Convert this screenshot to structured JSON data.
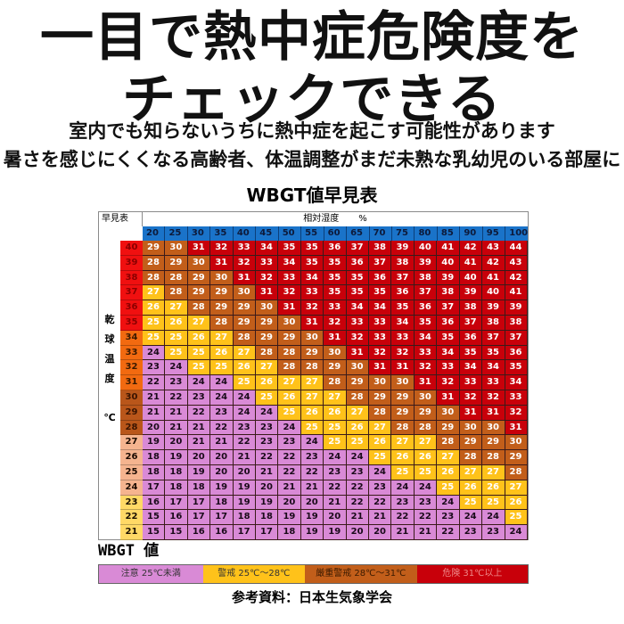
{
  "header": {
    "title_line1": "一目で熱中症危険度を",
    "title_line2": "チェックできる",
    "subtitle_line1": "室内でも知らないうちに熱中症を起こす可能性があります",
    "subtitle_line2": "暑さを感じにくくなる高齢者、体温調整がまだ未熟な乳幼児のいる部屋に"
  },
  "table": {
    "corner_label": "早見表",
    "humidity_label": "相対湿度",
    "humidity_unit": "%",
    "temp_axis_label": [
      "乾",
      "球",
      "温",
      "度",
      "",
      "℃"
    ]
  },
  "legend": {
    "title": "WBGT 値",
    "items": [
      {
        "label": "注意 25℃未満",
        "color": "#d98ad6",
        "level": "caution"
      },
      {
        "label": "警戒 25℃〜28℃",
        "color": "#ffc21a",
        "level": "warning"
      },
      {
        "label": "厳重警戒 28℃〜31℃",
        "color": "#c25e1a",
        "level": "severe"
      },
      {
        "label": "危険 31℃以上",
        "color": "#c8000a",
        "level": "danger"
      }
    ]
  },
  "source": "参考資料：日本生気象学会",
  "chart_data": {
    "type": "heatmap",
    "title": "WBGT値早見表",
    "xlabel": "相対湿度 %",
    "ylabel": "乾球温度 ℃",
    "x": [
      20,
      25,
      30,
      35,
      40,
      45,
      50,
      55,
      60,
      65,
      70,
      75,
      80,
      85,
      90,
      95,
      100
    ],
    "y": [
      40,
      39,
      38,
      37,
      36,
      35,
      34,
      33,
      32,
      31,
      30,
      29,
      28,
      27,
      26,
      25,
      24,
      23,
      22,
      21
    ],
    "row_header_colors": {
      "40-35": "#f01010",
      "34-31": "#f26a10",
      "30-28": "#b9561a",
      "27-24": "#f5b48f",
      "23-21": "#ffd966"
    },
    "thresholds": {
      "caution": "<25",
      "warning": "25-27",
      "severe": "28-30",
      "danger": ">=31"
    },
    "values": [
      [
        29,
        30,
        31,
        32,
        33,
        34,
        35,
        35,
        36,
        37,
        38,
        39,
        40,
        41,
        42,
        43,
        44
      ],
      [
        28,
        29,
        30,
        31,
        32,
        33,
        34,
        35,
        35,
        36,
        37,
        38,
        39,
        40,
        41,
        42,
        43
      ],
      [
        28,
        28,
        29,
        30,
        31,
        32,
        33,
        34,
        35,
        35,
        36,
        37,
        38,
        39,
        40,
        41,
        42
      ],
      [
        27,
        28,
        29,
        29,
        30,
        31,
        32,
        33,
        35,
        35,
        35,
        36,
        37,
        38,
        39,
        40,
        41
      ],
      [
        26,
        27,
        28,
        29,
        29,
        30,
        31,
        32,
        33,
        34,
        34,
        35,
        36,
        37,
        38,
        39,
        39
      ],
      [
        25,
        26,
        27,
        28,
        29,
        29,
        30,
        31,
        32,
        33,
        33,
        34,
        35,
        36,
        37,
        38,
        38
      ],
      [
        25,
        25,
        26,
        27,
        28,
        29,
        29,
        30,
        31,
        32,
        33,
        33,
        34,
        35,
        36,
        37,
        37
      ],
      [
        24,
        25,
        25,
        26,
        27,
        28,
        28,
        29,
        30,
        31,
        32,
        32,
        33,
        34,
        35,
        35,
        36
      ],
      [
        23,
        24,
        25,
        25,
        26,
        27,
        28,
        28,
        29,
        30,
        31,
        31,
        32,
        33,
        34,
        34,
        35
      ],
      [
        22,
        23,
        24,
        24,
        25,
        26,
        27,
        27,
        28,
        29,
        30,
        30,
        31,
        32,
        33,
        33,
        34
      ],
      [
        21,
        22,
        23,
        24,
        24,
        25,
        26,
        27,
        27,
        28,
        29,
        29,
        30,
        31,
        32,
        32,
        33
      ],
      [
        21,
        21,
        22,
        23,
        24,
        24,
        25,
        26,
        26,
        27,
        28,
        29,
        29,
        30,
        31,
        31,
        32
      ],
      [
        20,
        21,
        21,
        22,
        23,
        23,
        24,
        25,
        25,
        26,
        27,
        28,
        28,
        29,
        30,
        30,
        31
      ],
      [
        19,
        20,
        21,
        21,
        22,
        23,
        23,
        24,
        25,
        25,
        26,
        27,
        27,
        28,
        29,
        29,
        30
      ],
      [
        18,
        19,
        20,
        20,
        21,
        22,
        22,
        23,
        24,
        24,
        25,
        26,
        26,
        27,
        28,
        28,
        29
      ],
      [
        18,
        18,
        19,
        20,
        20,
        21,
        22,
        22,
        23,
        23,
        24,
        25,
        25,
        26,
        27,
        27,
        28
      ],
      [
        17,
        18,
        18,
        19,
        19,
        20,
        21,
        21,
        22,
        22,
        23,
        24,
        24,
        25,
        26,
        26,
        27
      ],
      [
        16,
        17,
        17,
        18,
        19,
        19,
        20,
        20,
        21,
        22,
        22,
        23,
        23,
        24,
        25,
        25,
        26
      ],
      [
        15,
        16,
        17,
        17,
        18,
        18,
        19,
        19,
        20,
        21,
        21,
        22,
        22,
        23,
        24,
        24,
        25
      ],
      [
        15,
        15,
        16,
        16,
        17,
        17,
        18,
        19,
        19,
        20,
        20,
        21,
        21,
        22,
        23,
        23,
        24
      ]
    ]
  }
}
